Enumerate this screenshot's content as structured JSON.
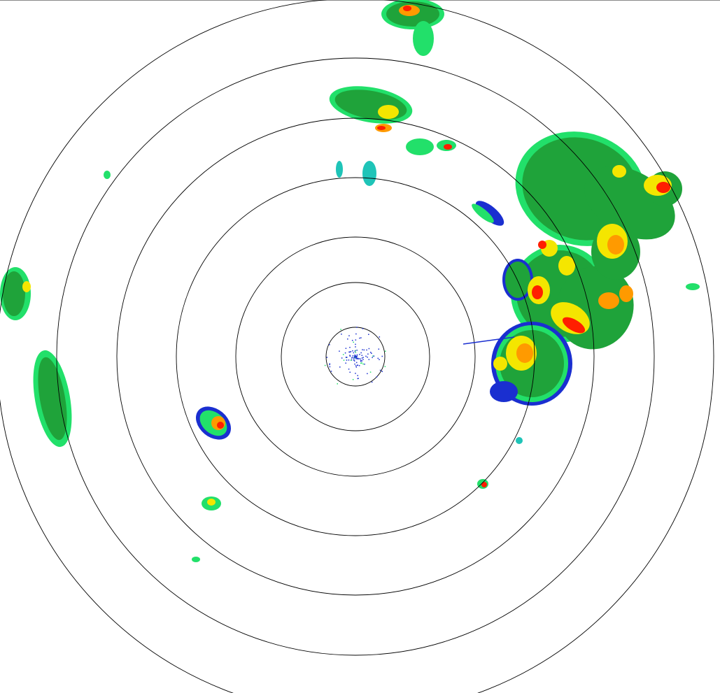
{
  "display": {
    "type": "radar-reflectivity-ppi",
    "range_rings": 7,
    "ring_color": "#000000",
    "background": "#ffffff"
  },
  "palette": {
    "blue": "#1a2fd0",
    "cyan": "#1fc4b8",
    "light_green": "#22e06a",
    "green": "#1fa33a",
    "yellow": "#f4e600",
    "orange": "#ff9a00",
    "red": "#ff1e00"
  }
}
